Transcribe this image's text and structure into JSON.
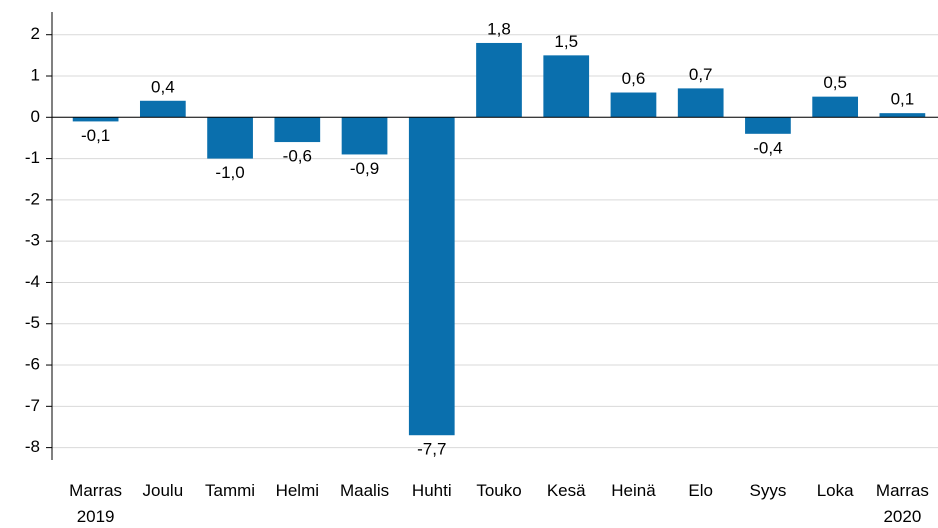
{
  "chart_data": {
    "type": "bar",
    "categories": [
      "Marras 2019",
      "Joulu",
      "Tammi",
      "Helmi",
      "Maalis",
      "Huhti",
      "Touko",
      "Kesä",
      "Heinä",
      "Elo",
      "Syys",
      "Loka",
      "Marras 2020"
    ],
    "values": [
      -0.1,
      0.4,
      -1.0,
      -0.6,
      -0.9,
      -7.7,
      1.8,
      1.5,
      0.6,
      0.7,
      -0.4,
      0.5,
      0.1
    ],
    "value_labels": [
      "-0,1",
      "0,4",
      "-1,0",
      "-0,6",
      "-0,9",
      "-7,7",
      "1,8",
      "1,5",
      "0,6",
      "0,7",
      "-0,4",
      "0,5",
      "0,1"
    ],
    "color": "#0a6fad",
    "ylim": [
      -8.3,
      2.55
    ],
    "yticks": [
      -8,
      -7,
      -6,
      -5,
      -4,
      -3,
      -2,
      -1,
      0,
      1,
      2
    ],
    "grid": true
  }
}
